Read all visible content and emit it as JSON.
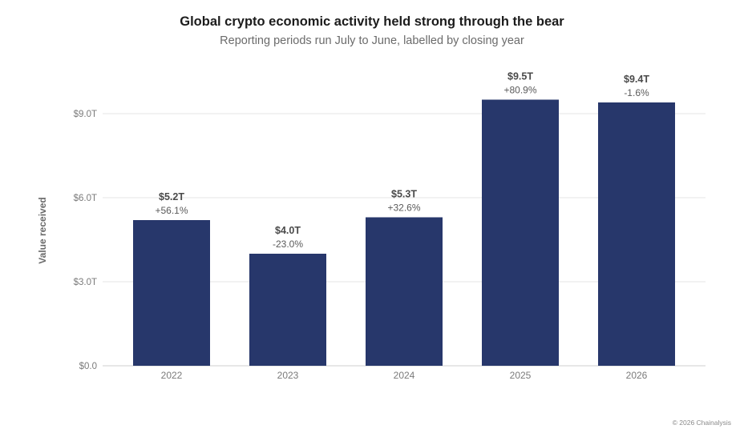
{
  "title": "Global crypto economic activity held strong through the bear",
  "subtitle": "Reporting periods run July to June, labelled by closing year",
  "copyright": "© 2026 Chainalysis",
  "colors": {
    "bar": "#27376b",
    "grid": "#e6e6e6",
    "tick_text": "#7a7a7a",
    "value_label": "#4a4a4a",
    "change_label": "#5a5a5a"
  },
  "chart_data": {
    "type": "bar",
    "categories": [
      "2022",
      "2023",
      "2024",
      "2025",
      "2026"
    ],
    "values": [
      5.2,
      4.0,
      5.3,
      9.5,
      9.4
    ],
    "value_labels": [
      "$5.2T",
      "$4.0T",
      "$5.3T",
      "$9.5T",
      "$9.4T"
    ],
    "change_labels": [
      "+56.1%",
      "-23.0%",
      "+32.6%",
      "+80.9%",
      "-1.6%"
    ],
    "ylabel": "Value received",
    "xlabel": "",
    "ylim": [
      0,
      9.0
    ],
    "yticks": [
      0,
      3,
      6,
      9
    ],
    "ytick_labels": [
      "$0.0",
      "$3.0T",
      "$6.0T",
      "$9.0T"
    ],
    "grid": true
  }
}
